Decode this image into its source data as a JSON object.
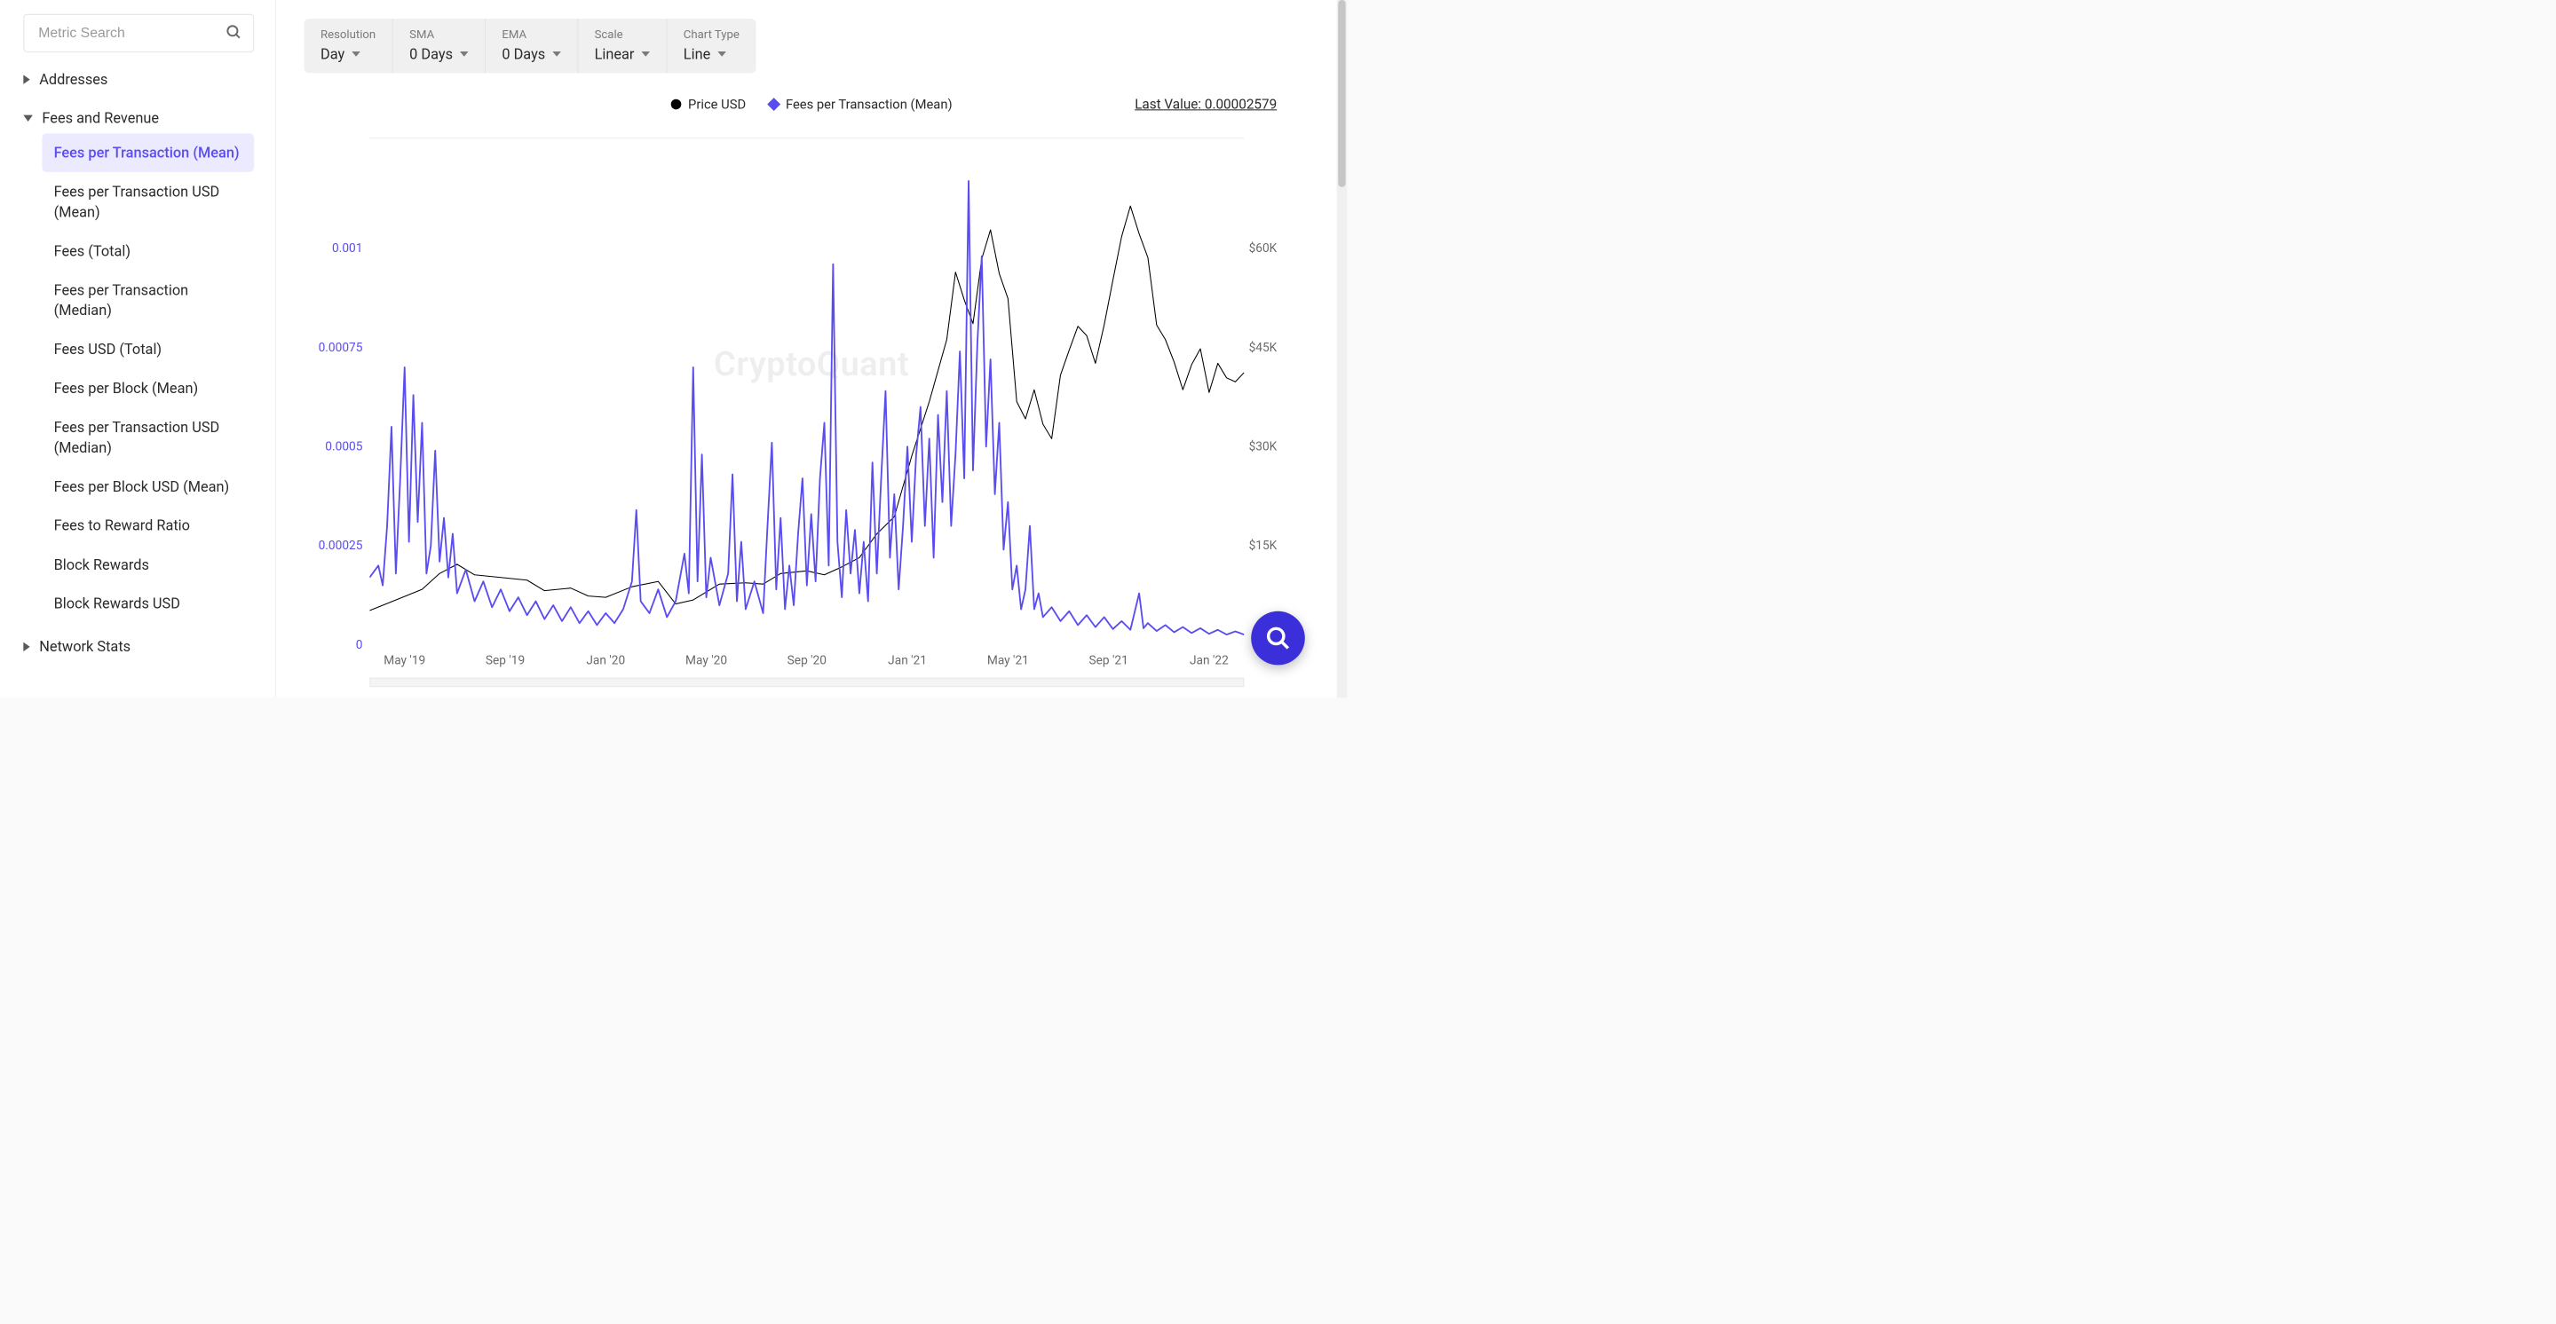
{
  "search": {
    "placeholder": "Metric Search"
  },
  "sidebar": {
    "groups": [
      {
        "label": "Addresses",
        "expanded": false
      },
      {
        "label": "Fees and Revenue",
        "expanded": true,
        "items": [
          "Fees per Transaction (Mean)",
          "Fees per Transaction USD (Mean)",
          "Fees (Total)",
          "Fees per Transaction (Median)",
          "Fees USD (Total)",
          "Fees per Block (Mean)",
          "Fees per Transaction USD (Median)",
          "Fees per Block USD (Mean)",
          "Fees to Reward Ratio",
          "Block Rewards",
          "Block Rewards USD"
        ],
        "activeIndex": 0
      },
      {
        "label": "Network Stats",
        "expanded": false
      }
    ]
  },
  "toolbar": {
    "cells": [
      {
        "label": "Resolution",
        "value": "Day"
      },
      {
        "label": "SMA",
        "value": "0 Days"
      },
      {
        "label": "EMA",
        "value": "0 Days"
      },
      {
        "label": "Scale",
        "value": "Linear"
      },
      {
        "label": "Chart Type",
        "value": "Line"
      }
    ]
  },
  "legend": {
    "items": [
      {
        "label": "Price USD",
        "shape": "dot",
        "color": "#000000"
      },
      {
        "label": "Fees per Transaction (Mean)",
        "shape": "diamond",
        "color": "#5a4df0"
      }
    ],
    "lastValue": "Last Value: 0.00002579"
  },
  "chart": {
    "watermark": "CryptoQuant",
    "leftAxis": {
      "color": "#5a4df0",
      "min": 0,
      "max": 0.00125,
      "ticks": [
        {
          "v": 0,
          "label": "0"
        },
        {
          "v": 0.00025,
          "label": "0.00025"
        },
        {
          "v": 0.0005,
          "label": "0.0005"
        },
        {
          "v": 0.00075,
          "label": "0.00075"
        },
        {
          "v": 0.001,
          "label": "0.001"
        }
      ]
    },
    "rightAxis": {
      "color": "#6a6a6a",
      "min": 0,
      "max": 75000,
      "ticks": [
        {
          "v": 15000,
          "label": "$15K"
        },
        {
          "v": 30000,
          "label": "$30K"
        },
        {
          "v": 45000,
          "label": "$45K"
        },
        {
          "v": 60000,
          "label": "$60K"
        }
      ]
    },
    "xAxis": {
      "labels": [
        "May '19",
        "Sep '19",
        "Jan '20",
        "May '20",
        "Sep '20",
        "Jan '21",
        "May '21",
        "Sep '21",
        "Jan '22"
      ],
      "positions": [
        0.04,
        0.155,
        0.27,
        0.385,
        0.5,
        0.615,
        0.73,
        0.845,
        0.96
      ]
    },
    "colors": {
      "price": "#000000",
      "fees": "#5a4df0",
      "grid": "#eeeeee",
      "background": "#ffffff"
    },
    "styles": {
      "lineWidthPrice": 2,
      "lineWidthFees": 3.5,
      "fontSizeAxis": 26
    },
    "series": {
      "price_usd": [
        [
          0.0,
          5200
        ],
        [
          0.03,
          6800
        ],
        [
          0.06,
          8400
        ],
        [
          0.08,
          10800
        ],
        [
          0.1,
          12200
        ],
        [
          0.12,
          10600
        ],
        [
          0.15,
          10200
        ],
        [
          0.18,
          9800
        ],
        [
          0.2,
          8200
        ],
        [
          0.23,
          8600
        ],
        [
          0.25,
          7400
        ],
        [
          0.27,
          7200
        ],
        [
          0.3,
          8800
        ],
        [
          0.33,
          9600
        ],
        [
          0.35,
          6200
        ],
        [
          0.37,
          6800
        ],
        [
          0.4,
          9200
        ],
        [
          0.43,
          9400
        ],
        [
          0.45,
          9200
        ],
        [
          0.47,
          10800
        ],
        [
          0.5,
          11200
        ],
        [
          0.52,
          10600
        ],
        [
          0.54,
          11800
        ],
        [
          0.56,
          13200
        ],
        [
          0.58,
          16800
        ],
        [
          0.6,
          19400
        ],
        [
          0.62,
          28600
        ],
        [
          0.64,
          36800
        ],
        [
          0.66,
          46200
        ],
        [
          0.67,
          56400
        ],
        [
          0.68,
          52200
        ],
        [
          0.69,
          48600
        ],
        [
          0.7,
          58400
        ],
        [
          0.71,
          62800
        ],
        [
          0.72,
          56200
        ],
        [
          0.73,
          52400
        ],
        [
          0.74,
          36800
        ],
        [
          0.75,
          34200
        ],
        [
          0.76,
          38600
        ],
        [
          0.77,
          33400
        ],
        [
          0.78,
          31200
        ],
        [
          0.79,
          40800
        ],
        [
          0.8,
          44600
        ],
        [
          0.81,
          48200
        ],
        [
          0.82,
          46800
        ],
        [
          0.83,
          42600
        ],
        [
          0.84,
          48400
        ],
        [
          0.85,
          55200
        ],
        [
          0.86,
          61800
        ],
        [
          0.87,
          66400
        ],
        [
          0.88,
          62200
        ],
        [
          0.89,
          58600
        ],
        [
          0.9,
          48400
        ],
        [
          0.91,
          46200
        ],
        [
          0.92,
          42800
        ],
        [
          0.93,
          38600
        ],
        [
          0.94,
          42400
        ],
        [
          0.95,
          44800
        ],
        [
          0.96,
          38200
        ],
        [
          0.97,
          42600
        ],
        [
          0.98,
          40400
        ],
        [
          0.99,
          39800
        ],
        [
          1.0,
          41200
        ]
      ],
      "fees_per_tx": [
        [
          0.0,
          0.00017
        ],
        [
          0.01,
          0.0002
        ],
        [
          0.015,
          0.00015
        ],
        [
          0.02,
          0.0003
        ],
        [
          0.025,
          0.00055
        ],
        [
          0.03,
          0.00018
        ],
        [
          0.035,
          0.00042
        ],
        [
          0.04,
          0.0007
        ],
        [
          0.045,
          0.00026
        ],
        [
          0.05,
          0.00063
        ],
        [
          0.055,
          0.00031
        ],
        [
          0.06,
          0.00056
        ],
        [
          0.065,
          0.00018
        ],
        [
          0.07,
          0.00025
        ],
        [
          0.075,
          0.00049
        ],
        [
          0.08,
          0.00021
        ],
        [
          0.085,
          0.00032
        ],
        [
          0.09,
          0.00017
        ],
        [
          0.095,
          0.00028
        ],
        [
          0.1,
          0.00013
        ],
        [
          0.11,
          0.00019
        ],
        [
          0.12,
          0.00011
        ],
        [
          0.13,
          0.00016
        ],
        [
          0.14,
          9.5e-05
        ],
        [
          0.15,
          0.00014
        ],
        [
          0.16,
          8.5e-05
        ],
        [
          0.17,
          0.00012
        ],
        [
          0.18,
          7.5e-05
        ],
        [
          0.19,
          0.00011
        ],
        [
          0.2,
          6.5e-05
        ],
        [
          0.21,
          0.0001
        ],
        [
          0.22,
          6e-05
        ],
        [
          0.23,
          9.5e-05
        ],
        [
          0.24,
          5.5e-05
        ],
        [
          0.25,
          8.5e-05
        ],
        [
          0.26,
          5e-05
        ],
        [
          0.27,
          8e-05
        ],
        [
          0.28,
          5.5e-05
        ],
        [
          0.29,
          9e-05
        ],
        [
          0.3,
          0.00016
        ],
        [
          0.305,
          0.00034
        ],
        [
          0.31,
          0.00011
        ],
        [
          0.32,
          8e-05
        ],
        [
          0.33,
          0.00014
        ],
        [
          0.34,
          7e-05
        ],
        [
          0.35,
          0.00011
        ],
        [
          0.36,
          0.00023
        ],
        [
          0.365,
          0.00013
        ],
        [
          0.37,
          0.0007
        ],
        [
          0.375,
          0.00016
        ],
        [
          0.38,
          0.00048
        ],
        [
          0.385,
          0.00012
        ],
        [
          0.39,
          0.00022
        ],
        [
          0.4,
          0.0001
        ],
        [
          0.41,
          0.00018
        ],
        [
          0.415,
          0.00043
        ],
        [
          0.42,
          0.00011
        ],
        [
          0.425,
          0.00026
        ],
        [
          0.43,
          9e-05
        ],
        [
          0.44,
          0.00016
        ],
        [
          0.45,
          8e-05
        ],
        [
          0.455,
          0.0003
        ],
        [
          0.46,
          0.00051
        ],
        [
          0.465,
          0.00014
        ],
        [
          0.47,
          0.00032
        ],
        [
          0.475,
          9e-05
        ],
        [
          0.48,
          0.0002
        ],
        [
          0.485,
          0.0001
        ],
        [
          0.49,
          0.00028
        ],
        [
          0.495,
          0.00042
        ],
        [
          0.5,
          0.00015
        ],
        [
          0.505,
          0.00033
        ],
        [
          0.51,
          0.00016
        ],
        [
          0.515,
          0.00042
        ],
        [
          0.52,
          0.00056
        ],
        [
          0.525,
          0.0002
        ],
        [
          0.53,
          0.00096
        ],
        [
          0.535,
          0.00026
        ],
        [
          0.54,
          0.00012
        ],
        [
          0.545,
          0.00034
        ],
        [
          0.55,
          0.00018
        ],
        [
          0.555,
          0.00029
        ],
        [
          0.56,
          0.00013
        ],
        [
          0.565,
          0.00026
        ],
        [
          0.57,
          0.00011
        ],
        [
          0.575,
          0.00046
        ],
        [
          0.58,
          0.00018
        ],
        [
          0.585,
          0.00042
        ],
        [
          0.59,
          0.00064
        ],
        [
          0.595,
          0.00022
        ],
        [
          0.6,
          0.00038
        ],
        [
          0.605,
          0.00014
        ],
        [
          0.61,
          0.0003
        ],
        [
          0.615,
          0.0005
        ],
        [
          0.62,
          0.00026
        ],
        [
          0.625,
          0.00048
        ],
        [
          0.63,
          0.0006
        ],
        [
          0.635,
          0.0003
        ],
        [
          0.64,
          0.00052
        ],
        [
          0.645,
          0.00022
        ],
        [
          0.65,
          0.00058
        ],
        [
          0.655,
          0.00036
        ],
        [
          0.66,
          0.00064
        ],
        [
          0.665,
          0.0003
        ],
        [
          0.67,
          0.00048
        ],
        [
          0.675,
          0.00074
        ],
        [
          0.68,
          0.00042
        ],
        [
          0.685,
          0.00117
        ],
        [
          0.69,
          0.00044
        ],
        [
          0.695,
          0.00076
        ],
        [
          0.7,
          0.00098
        ],
        [
          0.705,
          0.0005
        ],
        [
          0.71,
          0.00072
        ],
        [
          0.715,
          0.00038
        ],
        [
          0.72,
          0.00056
        ],
        [
          0.725,
          0.00024
        ],
        [
          0.73,
          0.00036
        ],
        [
          0.735,
          0.00014
        ],
        [
          0.74,
          0.0002
        ],
        [
          0.745,
          9e-05
        ],
        [
          0.75,
          0.00014
        ],
        [
          0.755,
          0.0003
        ],
        [
          0.76,
          9e-05
        ],
        [
          0.765,
          0.00013
        ],
        [
          0.77,
          7e-05
        ],
        [
          0.78,
          9.5e-05
        ],
        [
          0.79,
          6e-05
        ],
        [
          0.8,
          8.5e-05
        ],
        [
          0.81,
          5e-05
        ],
        [
          0.82,
          7.5e-05
        ],
        [
          0.83,
          4.5e-05
        ],
        [
          0.84,
          7e-05
        ],
        [
          0.85,
          4e-05
        ],
        [
          0.86,
          6e-05
        ],
        [
          0.87,
          3.8e-05
        ],
        [
          0.88,
          0.00013
        ],
        [
          0.885,
          4.2e-05
        ],
        [
          0.89,
          5.5e-05
        ],
        [
          0.9,
          3.5e-05
        ],
        [
          0.91,
          5e-05
        ],
        [
          0.92,
          3.2e-05
        ],
        [
          0.93,
          4.5e-05
        ],
        [
          0.94,
          3e-05
        ],
        [
          0.95,
          4.2e-05
        ],
        [
          0.96,
          2.8e-05
        ],
        [
          0.97,
          3.8e-05
        ],
        [
          0.98,
          2.6e-05
        ],
        [
          0.99,
          3.4e-05
        ],
        [
          1.0,
          2.6e-05
        ]
      ]
    }
  }
}
